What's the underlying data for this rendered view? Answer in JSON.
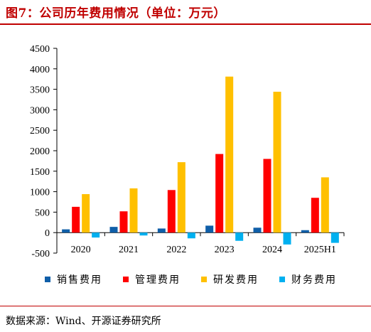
{
  "title": "图7：公司历年费用情况（单位：万元）",
  "source": "数据来源：Wind、开源证券研究所",
  "colors": {
    "title": "#C00000",
    "销售费用": "#0F5EA8",
    "管理费用": "#FF0000",
    "研发费用": "#FFC000",
    "财务费用": "#00B0F0"
  },
  "chart_data": {
    "type": "bar",
    "categories": [
      "2020",
      "2021",
      "2022",
      "2023",
      "2024",
      "2025H1"
    ],
    "series": [
      {
        "name": "销售费用",
        "values": [
          80,
          140,
          100,
          170,
          120,
          60
        ]
      },
      {
        "name": "管理费用",
        "values": [
          630,
          520,
          1040,
          1920,
          1800,
          850
        ]
      },
      {
        "name": "研发费用",
        "values": [
          940,
          1080,
          1720,
          3810,
          3440,
          1350
        ]
      },
      {
        "name": "财务费用",
        "values": [
          -120,
          -70,
          -140,
          -200,
          -290,
          -250
        ]
      }
    ],
    "y_ticks": [
      "4500",
      "4000",
      "3500",
      "3000",
      "2500",
      "2000",
      "1500",
      "1000",
      "500",
      "0",
      "-500"
    ],
    "ylim": [
      -500,
      4500
    ],
    "legend_position": "bottom",
    "grid": false
  }
}
